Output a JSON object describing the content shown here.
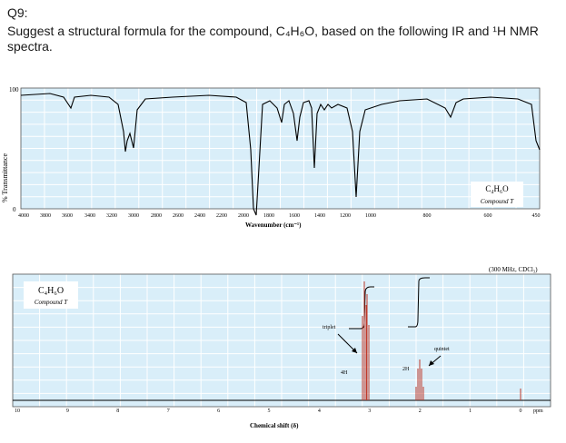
{
  "question": {
    "label": "Q9:",
    "text": "Suggest a structural formula for the compound, C₄H₆O, based on the following IR and ¹H NMR spectra."
  },
  "ir": {
    "ylabel": "% Transmittance",
    "ytick_top": "100",
    "ytick_bottom": "0",
    "xlabel": "Wavenumber (cm⁻¹)",
    "x_ticks": [
      "4000",
      "3800",
      "3600",
      "3400",
      "3200",
      "3000",
      "2800",
      "2600",
      "2400",
      "2200",
      "2000",
      "1800",
      "1600",
      "1400",
      "1200",
      "1000",
      "800",
      "600",
      "450"
    ],
    "formula": "C₄H₆O",
    "compound": "Compound T"
  },
  "nmr": {
    "conditions": "(300 MHz, CDCl₃)",
    "formula": "C₄H₆O",
    "compound": "Compound T",
    "xlabel": "Chemical shift (δ)",
    "ppm_label": "ppm",
    "x_ticks": [
      "10",
      "9",
      "8",
      "7",
      "6",
      "5",
      "4",
      "3",
      "2",
      "1",
      "0"
    ],
    "ann_triplet": "triplet",
    "ann_quintet": "quintet",
    "ann_4h": "4H",
    "ann_2h": "2H"
  },
  "colors": {
    "panel_bg": "#d9eef9",
    "grid": "#ffffff",
    "trace": "#000000",
    "peak": "#c0392b"
  }
}
